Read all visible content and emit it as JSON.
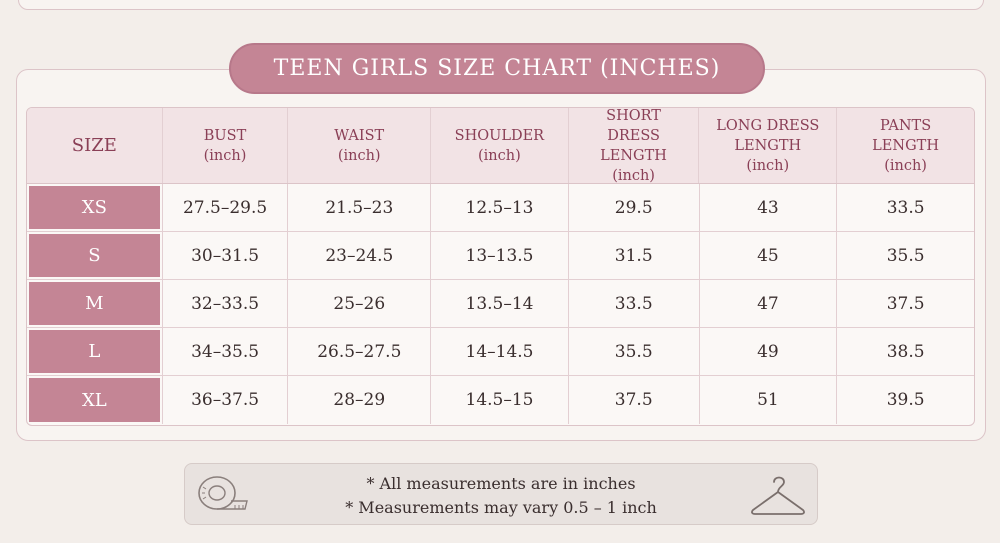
{
  "title": "TEEN GIRLS SIZE CHART (INCHES)",
  "headers": [
    {
      "main": "SIZE",
      "sub": ""
    },
    {
      "main": "BUST",
      "sub": "(inch)"
    },
    {
      "main": "WAIST",
      "sub": "(inch)"
    },
    {
      "main": "SHOULDER",
      "sub": "(inch)"
    },
    {
      "main": "SHORT DRESS LENGTH",
      "sub": "(inch)"
    },
    {
      "main": "LONG DRESS LENGTH",
      "sub": "(inch)"
    },
    {
      "main": "PANTS LENGTH",
      "sub": "(inch)"
    }
  ],
  "rows": [
    {
      "size": "XS",
      "bust": "27.5–29.5",
      "waist": "21.5–23",
      "shoulder": "12.5–13",
      "short_dress": "29.5",
      "long_dress": "43",
      "pants": "33.5"
    },
    {
      "size": "S",
      "bust": "30–31.5",
      "waist": "23–24.5",
      "shoulder": "13–13.5",
      "short_dress": "31.5",
      "long_dress": "45",
      "pants": "35.5"
    },
    {
      "size": "M",
      "bust": "32–33.5",
      "waist": "25–26",
      "shoulder": "13.5–14",
      "short_dress": "33.5",
      "long_dress": "47",
      "pants": "37.5"
    },
    {
      "size": "L",
      "bust": "34–35.5",
      "waist": "26.5–27.5",
      "shoulder": "14–14.5",
      "short_dress": "35.5",
      "long_dress": "49",
      "pants": "38.5"
    },
    {
      "size": "XL",
      "bust": "36–37.5",
      "waist": "28–29",
      "shoulder": "14.5–15",
      "short_dress": "37.5",
      "long_dress": "51",
      "pants": "39.5"
    }
  ],
  "notes": [
    "* All measurements are in inches",
    "* Measurements may vary 0.5 – 1 inch"
  ],
  "icons": {
    "left": "measuring-tape-icon",
    "right": "hanger-icon"
  },
  "colors": {
    "accent": "#c48595",
    "header_text": "#8a3f56",
    "background": "#f3eeea"
  }
}
